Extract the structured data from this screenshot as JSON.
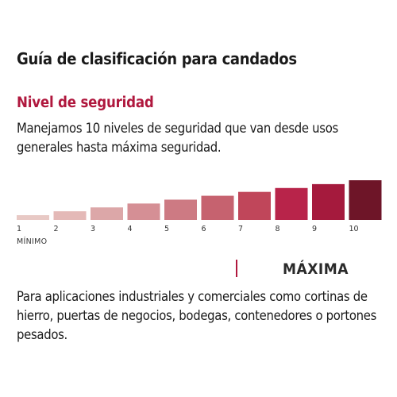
{
  "title": "Guía de clasificación para candados",
  "subtitle": "Nivel de seguridad",
  "description": "Manejamos 10 niveles de seguridad que van desde usos generales hasta máxima seguridad.",
  "min_label": "MÍNIMO",
  "max_label": "MÁXIMA",
  "footer": "Para aplicaciones industriales y comerciales como cortinas de hierro, puertas de negocios, bodegas, contenedores o portones pesados.",
  "colors": {
    "accent": "#b0183e",
    "bars": [
      "#e8c9c5",
      "#e4b9b7",
      "#dca7a8",
      "#d58f95",
      "#cd7a83",
      "#c6626f",
      "#c0465a",
      "#b8244a",
      "#a51a3d",
      "#6e1528"
    ]
  },
  "chart_data": {
    "type": "bar",
    "categories": [
      "1",
      "2",
      "3",
      "4",
      "5",
      "6",
      "7",
      "8",
      "9",
      "10"
    ],
    "values": [
      1,
      2,
      3,
      4,
      5,
      6,
      7,
      8,
      9,
      10
    ],
    "title": "",
    "xlabel": "",
    "ylabel": "",
    "ylim": [
      0,
      10
    ],
    "grid": false
  }
}
